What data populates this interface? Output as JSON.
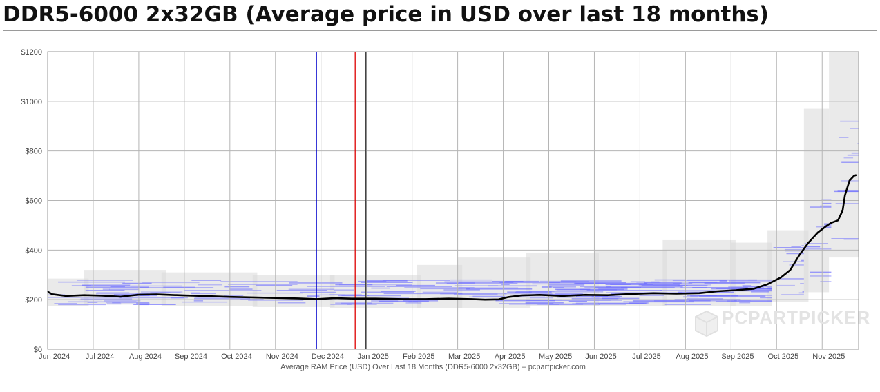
{
  "title": "DDR5-6000 2x32GB (Average price in USD over last 18 months)",
  "watermark": "PCPARTPICKER",
  "colors": {
    "average_line": "#000000",
    "price_bands_gray": "#d9d9d9",
    "price_lines_blue": "#6b6bff",
    "marker_blue": "#0000cc",
    "marker_red": "#dd0000",
    "marker_gray": "#444444",
    "grid": "#b5b5b5"
  },
  "chart_data": {
    "type": "line",
    "title": "DDR5-6000 2x32GB (Average price in USD over last 18 months)",
    "xlabel": "Average RAM Price (USD) Over Last 18 Months (DDR5-6000 2x32GB) – pcpartpicker.com",
    "ylabel": "",
    "ylim": [
      0,
      1200
    ],
    "xlim": [
      0,
      17.8
    ],
    "y_ticks": [
      0,
      200,
      400,
      600,
      800,
      1000,
      1200
    ],
    "y_tick_labels": [
      "$0",
      "$200",
      "$400",
      "$600",
      "$800",
      "$1000",
      "$1200"
    ],
    "x_tick_labels": [
      "Jun 2024",
      "Jul 2024",
      "Aug 2024",
      "Sep 2024",
      "Oct 2024",
      "Nov 2024",
      "Dec 2024",
      "Jan 2025",
      "Feb 2025",
      "Mar 2025",
      "Apr 2025",
      "May 2025",
      "Jun 2025",
      "Jul 2025",
      "Aug 2025",
      "Sep 2025",
      "Oct 2025",
      "Nov 2025"
    ],
    "x_ticks": [
      0.1,
      1.1,
      2.1,
      3.1,
      4.1,
      5.1,
      6.1,
      7.1,
      8.1,
      9.1,
      10.1,
      11.1,
      12.1,
      13.1,
      14.1,
      15.1,
      16.1,
      17.1
    ],
    "grid": true,
    "markers": [
      {
        "name": "blue-marker",
        "x": 5.9,
        "color": "#0000cc"
      },
      {
        "name": "red-marker",
        "x": 6.75,
        "color": "#dd0000"
      },
      {
        "name": "gray-marker",
        "x": 6.98,
        "color": "#444444"
      }
    ],
    "series": [
      {
        "name": "Average price",
        "x": [
          0.0,
          0.1,
          0.4,
          0.8,
          1.2,
          1.6,
          2.0,
          2.4,
          3.0,
          3.5,
          4.0,
          4.5,
          5.0,
          5.5,
          5.9,
          6.3,
          6.7,
          7.2,
          7.8,
          8.3,
          8.8,
          9.3,
          9.6,
          9.9,
          10.1,
          10.4,
          10.8,
          11.3,
          11.8,
          12.3,
          12.8,
          13.3,
          13.8,
          14.3,
          14.7,
          15.1,
          15.5,
          15.8,
          16.1,
          16.3,
          16.5,
          16.7,
          16.9,
          17.1,
          17.2,
          17.35,
          17.45,
          17.5,
          17.6,
          17.7,
          17.75
        ],
        "values": [
          232,
          222,
          215,
          218,
          216,
          212,
          220,
          221,
          217,
          214,
          211,
          209,
          207,
          205,
          202,
          206,
          204,
          204,
          202,
          202,
          204,
          202,
          200,
          201,
          210,
          217,
          219,
          215,
          219,
          218,
          223,
          226,
          224,
          226,
          234,
          238,
          244,
          262,
          290,
          320,
          380,
          430,
          470,
          498,
          510,
          520,
          560,
          620,
          680,
          700,
          703
        ]
      }
    ]
  },
  "bands": {
    "gray": [
      {
        "x0": 0.0,
        "x1": 0.9,
        "lo": 175,
        "hi": 285
      },
      {
        "x0": 0.8,
        "x1": 2.6,
        "lo": 180,
        "hi": 320
      },
      {
        "x0": 2.5,
        "x1": 4.6,
        "lo": 175,
        "hi": 310
      },
      {
        "x0": 4.5,
        "x1": 6.3,
        "lo": 170,
        "hi": 300
      },
      {
        "x0": 6.2,
        "x1": 8.2,
        "lo": 165,
        "hi": 300
      },
      {
        "x0": 8.1,
        "x1": 9.1,
        "lo": 165,
        "hi": 340
      },
      {
        "x0": 9.0,
        "x1": 10.6,
        "lo": 165,
        "hi": 370
      },
      {
        "x0": 10.5,
        "x1": 12.1,
        "lo": 175,
        "hi": 390
      },
      {
        "x0": 12.0,
        "x1": 13.6,
        "lo": 175,
        "hi": 400
      },
      {
        "x0": 13.5,
        "x1": 15.1,
        "lo": 175,
        "hi": 440
      },
      {
        "x0": 15.0,
        "x1": 15.9,
        "lo": 175,
        "hi": 430
      },
      {
        "x0": 15.8,
        "x1": 16.7,
        "lo": 190,
        "hi": 480
      },
      {
        "x0": 16.6,
        "x1": 17.15,
        "lo": 230,
        "hi": 970
      },
      {
        "x0": 17.15,
        "x1": 17.8,
        "lo": 370,
        "hi": 1200
      }
    ],
    "blue_windows": [
      {
        "x0": 0.0,
        "x1": 15.9,
        "lo": 180,
        "hi": 280
      },
      {
        "x0": 15.9,
        "x1": 16.6,
        "lo": 200,
        "hi": 440
      },
      {
        "x0": 16.6,
        "x1": 17.2,
        "lo": 260,
        "hi": 620
      },
      {
        "x0": 17.2,
        "x1": 17.8,
        "lo": 420,
        "hi": 950
      }
    ]
  }
}
